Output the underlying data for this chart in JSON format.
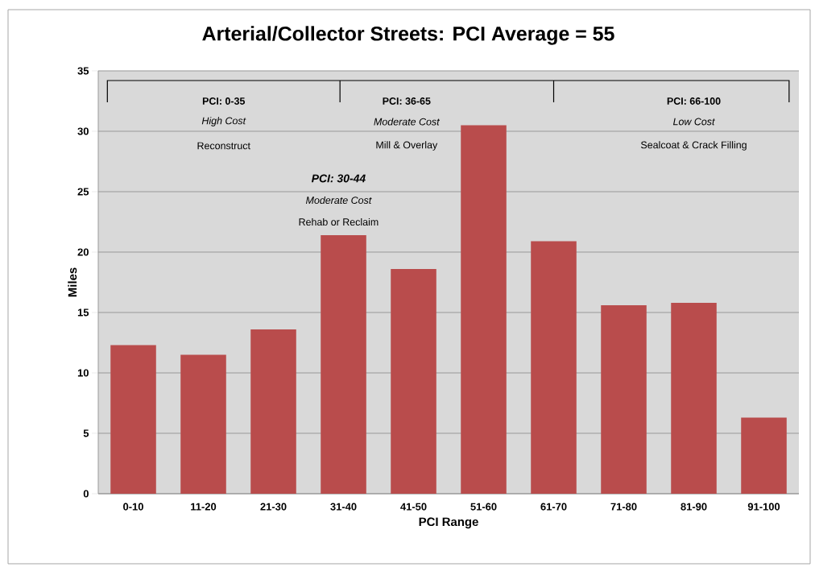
{
  "chart_data": {
    "type": "bar",
    "title": "Arterial/Collector Streets: PCI Average = 55",
    "xlabel": "PCI Range",
    "ylabel": "Miles",
    "categories": [
      "0-10",
      "11-20",
      "21-30",
      "31-40",
      "41-50",
      "51-60",
      "61-70",
      "71-80",
      "81-90",
      "91-100"
    ],
    "values": [
      12.3,
      11.5,
      13.6,
      21.4,
      18.6,
      30.5,
      20.9,
      15.6,
      15.8,
      6.3
    ],
    "color": "#b94c4c",
    "ylim": [
      0,
      35
    ],
    "yticks": [
      0,
      5,
      10,
      15,
      20,
      25,
      30,
      35
    ],
    "grid": "y",
    "annotations": [
      "PCI: 0-35",
      "High Cost",
      "Reconstruct",
      "PCI: 36-65",
      "Moderate Cost",
      "Mill & Overlay",
      "PCI: 66-100",
      "Low Cost",
      "Sealcoat & Crack Filling",
      "PCI: 30-44",
      "Moderate Cost",
      "Rehab or Reclaim"
    ]
  }
}
